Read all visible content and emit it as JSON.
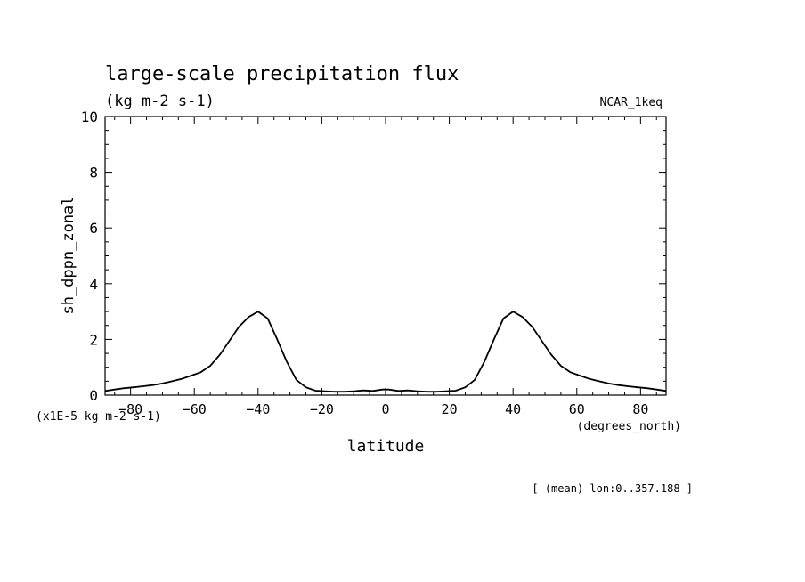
{
  "chart_data": {
    "type": "line",
    "title": "large-scale precipitation flux",
    "units_label": "(kg m-2 s-1)",
    "run_label": "NCAR_1keq",
    "ylabel": "sh_dppn_zonal",
    "y_scale_label": "(x1E-5 kg m-2 s-1)",
    "xlabel": "latitude",
    "x_units_label": "(degrees_north)",
    "footer": "[ (mean) lon:0..357.188 ]",
    "xlim": [
      -88,
      88
    ],
    "ylim": [
      0,
      10
    ],
    "xticks": [
      -80,
      -60,
      -40,
      -20,
      0,
      20,
      40,
      60,
      80
    ],
    "yticks": [
      0,
      2,
      4,
      6,
      8,
      10
    ],
    "grid": false,
    "series": [
      {
        "x": [
          -88,
          -85,
          -82,
          -79,
          -76,
          -73,
          -70,
          -67,
          -64,
          -61,
          -58,
          -55,
          -52,
          -49,
          -46,
          -43,
          -40,
          -37,
          -34,
          -31,
          -28,
          -25,
          -22,
          -19,
          -16,
          -13,
          -10,
          -7,
          -4,
          -1,
          1,
          4,
          7,
          10,
          13,
          16,
          19,
          22,
          25,
          28,
          31,
          34,
          37,
          40,
          43,
          46,
          49,
          52,
          55,
          58,
          61,
          64,
          67,
          70,
          73,
          76,
          79,
          82,
          85,
          88
        ],
        "y": [
          0.15,
          0.2,
          0.25,
          0.28,
          0.32,
          0.36,
          0.42,
          0.5,
          0.58,
          0.7,
          0.82,
          1.05,
          1.45,
          1.95,
          2.45,
          2.8,
          3.0,
          2.75,
          2.0,
          1.2,
          0.55,
          0.28,
          0.16,
          0.14,
          0.12,
          0.12,
          0.14,
          0.17,
          0.15,
          0.2,
          0.2,
          0.15,
          0.17,
          0.14,
          0.12,
          0.12,
          0.14,
          0.16,
          0.28,
          0.55,
          1.2,
          2.0,
          2.75,
          3.0,
          2.8,
          2.45,
          1.95,
          1.45,
          1.05,
          0.82,
          0.7,
          0.58,
          0.5,
          0.42,
          0.36,
          0.32,
          0.28,
          0.25,
          0.2,
          0.15
        ]
      }
    ]
  }
}
